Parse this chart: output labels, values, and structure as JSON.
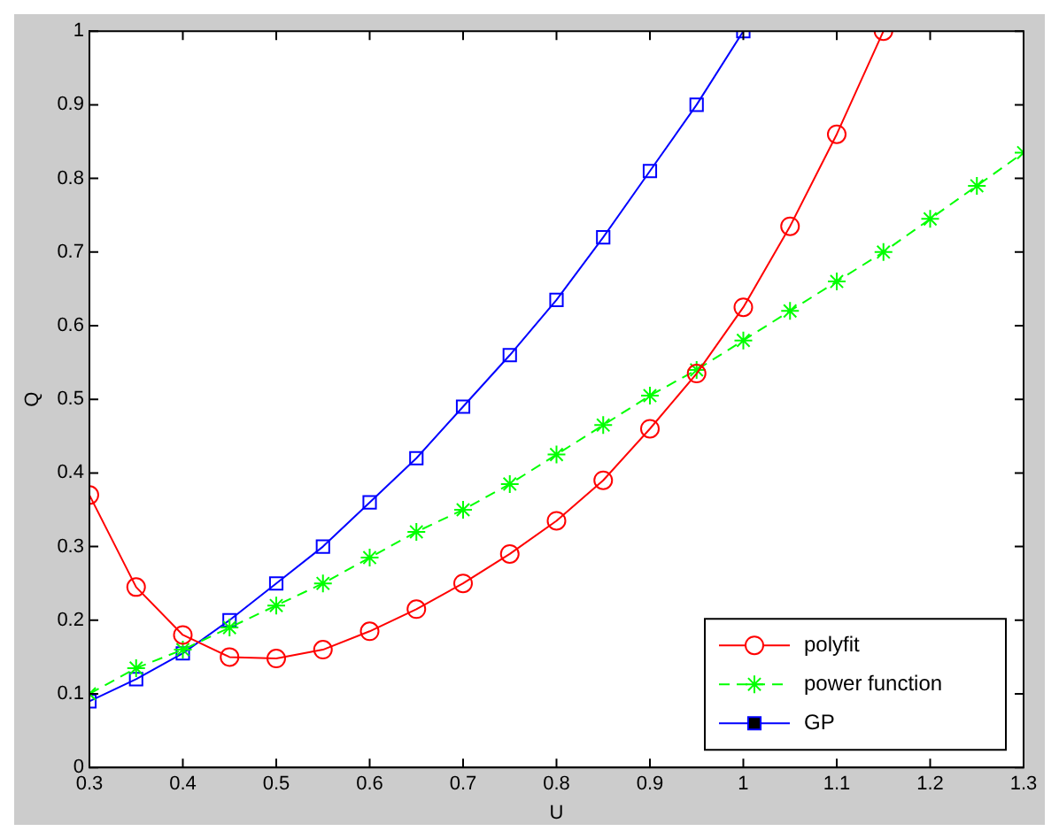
{
  "chart_data": {
    "type": "line",
    "xlabel": "U",
    "ylabel": "Q",
    "xlim": [
      0.3,
      1.3
    ],
    "xticks": [
      0.3,
      0.4,
      0.5,
      0.6,
      0.7,
      0.8,
      0.9,
      1,
      1.1,
      1.2,
      1.3
    ],
    "ylim": [
      0,
      1
    ],
    "yticks": [
      0,
      0.1,
      0.2,
      0.3,
      0.4,
      0.5,
      0.6,
      0.7,
      0.8,
      0.9,
      1
    ],
    "grid": false,
    "legend": "bottom right",
    "series": [
      {
        "name": "polyfit",
        "color": "#ff0000",
        "marker": "circle",
        "line_style": "solid",
        "x": [
          0.3,
          0.35,
          0.4,
          0.45,
          0.5,
          0.55,
          0.6,
          0.65,
          0.7,
          0.75,
          0.8,
          0.85,
          0.9,
          0.95,
          1.0,
          1.05,
          1.1,
          1.15
        ],
        "values": [
          0.37,
          0.245,
          0.18,
          0.15,
          0.148,
          0.16,
          0.185,
          0.215,
          0.25,
          0.29,
          0.335,
          0.39,
          0.46,
          0.535,
          0.625,
          0.735,
          0.86,
          1.0
        ]
      },
      {
        "name": "power function",
        "color": "#00ff00",
        "marker": "cross",
        "line_style": "dashed",
        "x": [
          0.3,
          0.35,
          0.4,
          0.45,
          0.5,
          0.55,
          0.6,
          0.65,
          0.7,
          0.75,
          0.8,
          0.85,
          0.9,
          0.95,
          1.0,
          1.05,
          1.1,
          1.15,
          1.2,
          1.25,
          1.3
        ],
        "values": [
          0.1,
          0.135,
          0.16,
          0.19,
          0.22,
          0.25,
          0.285,
          0.32,
          0.35,
          0.385,
          0.425,
          0.465,
          0.505,
          0.54,
          0.58,
          0.62,
          0.66,
          0.7,
          0.745,
          0.79,
          0.835
        ]
      },
      {
        "name": "GP",
        "color": "#0000ff",
        "marker": "square",
        "line_style": "solid",
        "x": [
          0.3,
          0.35,
          0.4,
          0.45,
          0.5,
          0.55,
          0.6,
          0.65,
          0.7,
          0.75,
          0.8,
          0.85,
          0.9,
          0.95,
          1.0
        ],
        "values": [
          0.09,
          0.12,
          0.155,
          0.2,
          0.25,
          0.3,
          0.36,
          0.42,
          0.49,
          0.56,
          0.635,
          0.72,
          0.81,
          0.9,
          1.0
        ]
      }
    ]
  }
}
